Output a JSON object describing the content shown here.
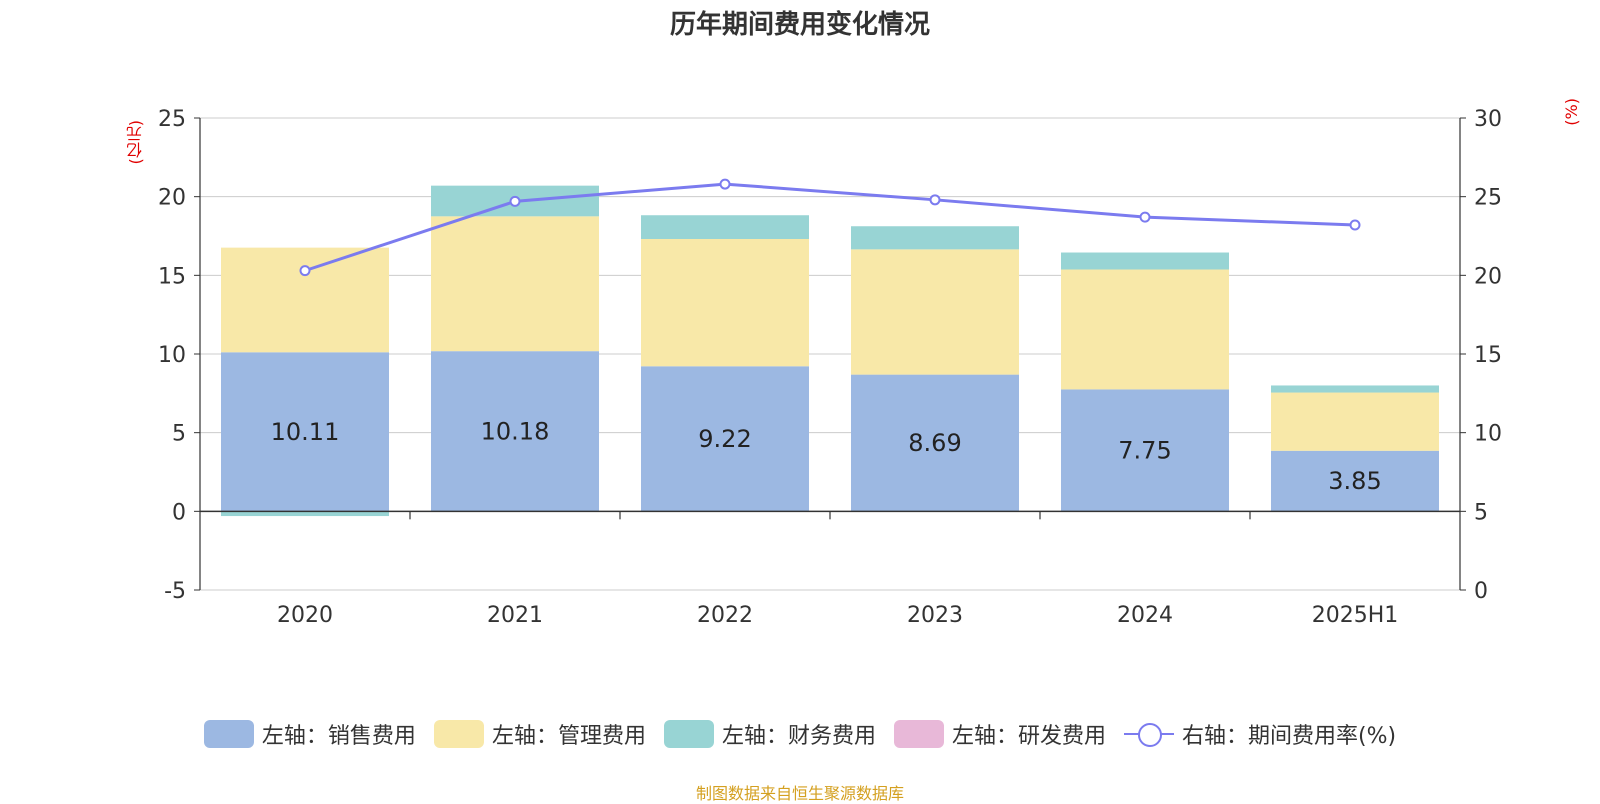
{
  "chart_data": {
    "type": "bar",
    "title": "历年期间费用变化情况",
    "categories": [
      "2020",
      "2021",
      "2022",
      "2023",
      "2024",
      "2025H1"
    ],
    "left_axis": {
      "unit": "(亿元)",
      "ylim": [
        -5,
        25
      ],
      "ticks": [
        "-5",
        "0",
        "5",
        "10",
        "15",
        "20",
        "25"
      ]
    },
    "right_axis": {
      "unit": "(%)",
      "ylim": [
        0,
        30
      ],
      "ticks": [
        "0",
        "5",
        "10",
        "15",
        "20",
        "25",
        "30"
      ]
    },
    "stacked": true,
    "series": [
      {
        "name": "左轴：销售费用",
        "axis": "left",
        "color": "#9cb8e2",
        "values": [
          10.11,
          10.18,
          9.22,
          8.69,
          7.75,
          3.85
        ],
        "labels": [
          "10.11",
          "10.18",
          "9.22",
          "8.69",
          "7.75",
          "3.85"
        ]
      },
      {
        "name": "左轴：管理费用",
        "axis": "left",
        "color": "#f8e8a8",
        "values": [
          6.65,
          8.57,
          8.09,
          7.96,
          7.62,
          3.7
        ]
      },
      {
        "name": "左轴：财务费用",
        "axis": "left",
        "color": "#98d4d4",
        "values": [
          -0.3,
          1.95,
          1.51,
          1.47,
          1.08,
          0.45
        ]
      },
      {
        "name": "左轴：研发费用",
        "axis": "left",
        "color": "#e8b8d8",
        "values": [
          0,
          0,
          0,
          0,
          0,
          0
        ]
      },
      {
        "name": "右轴：期间费用率(%)",
        "axis": "right",
        "type": "line",
        "color": "#7b7bef",
        "values": [
          20.3,
          24.7,
          25.8,
          24.8,
          23.7,
          23.2
        ]
      }
    ],
    "grid": true,
    "legend_position": "bottom"
  },
  "source_note": "制图数据来自恒生聚源数据库"
}
